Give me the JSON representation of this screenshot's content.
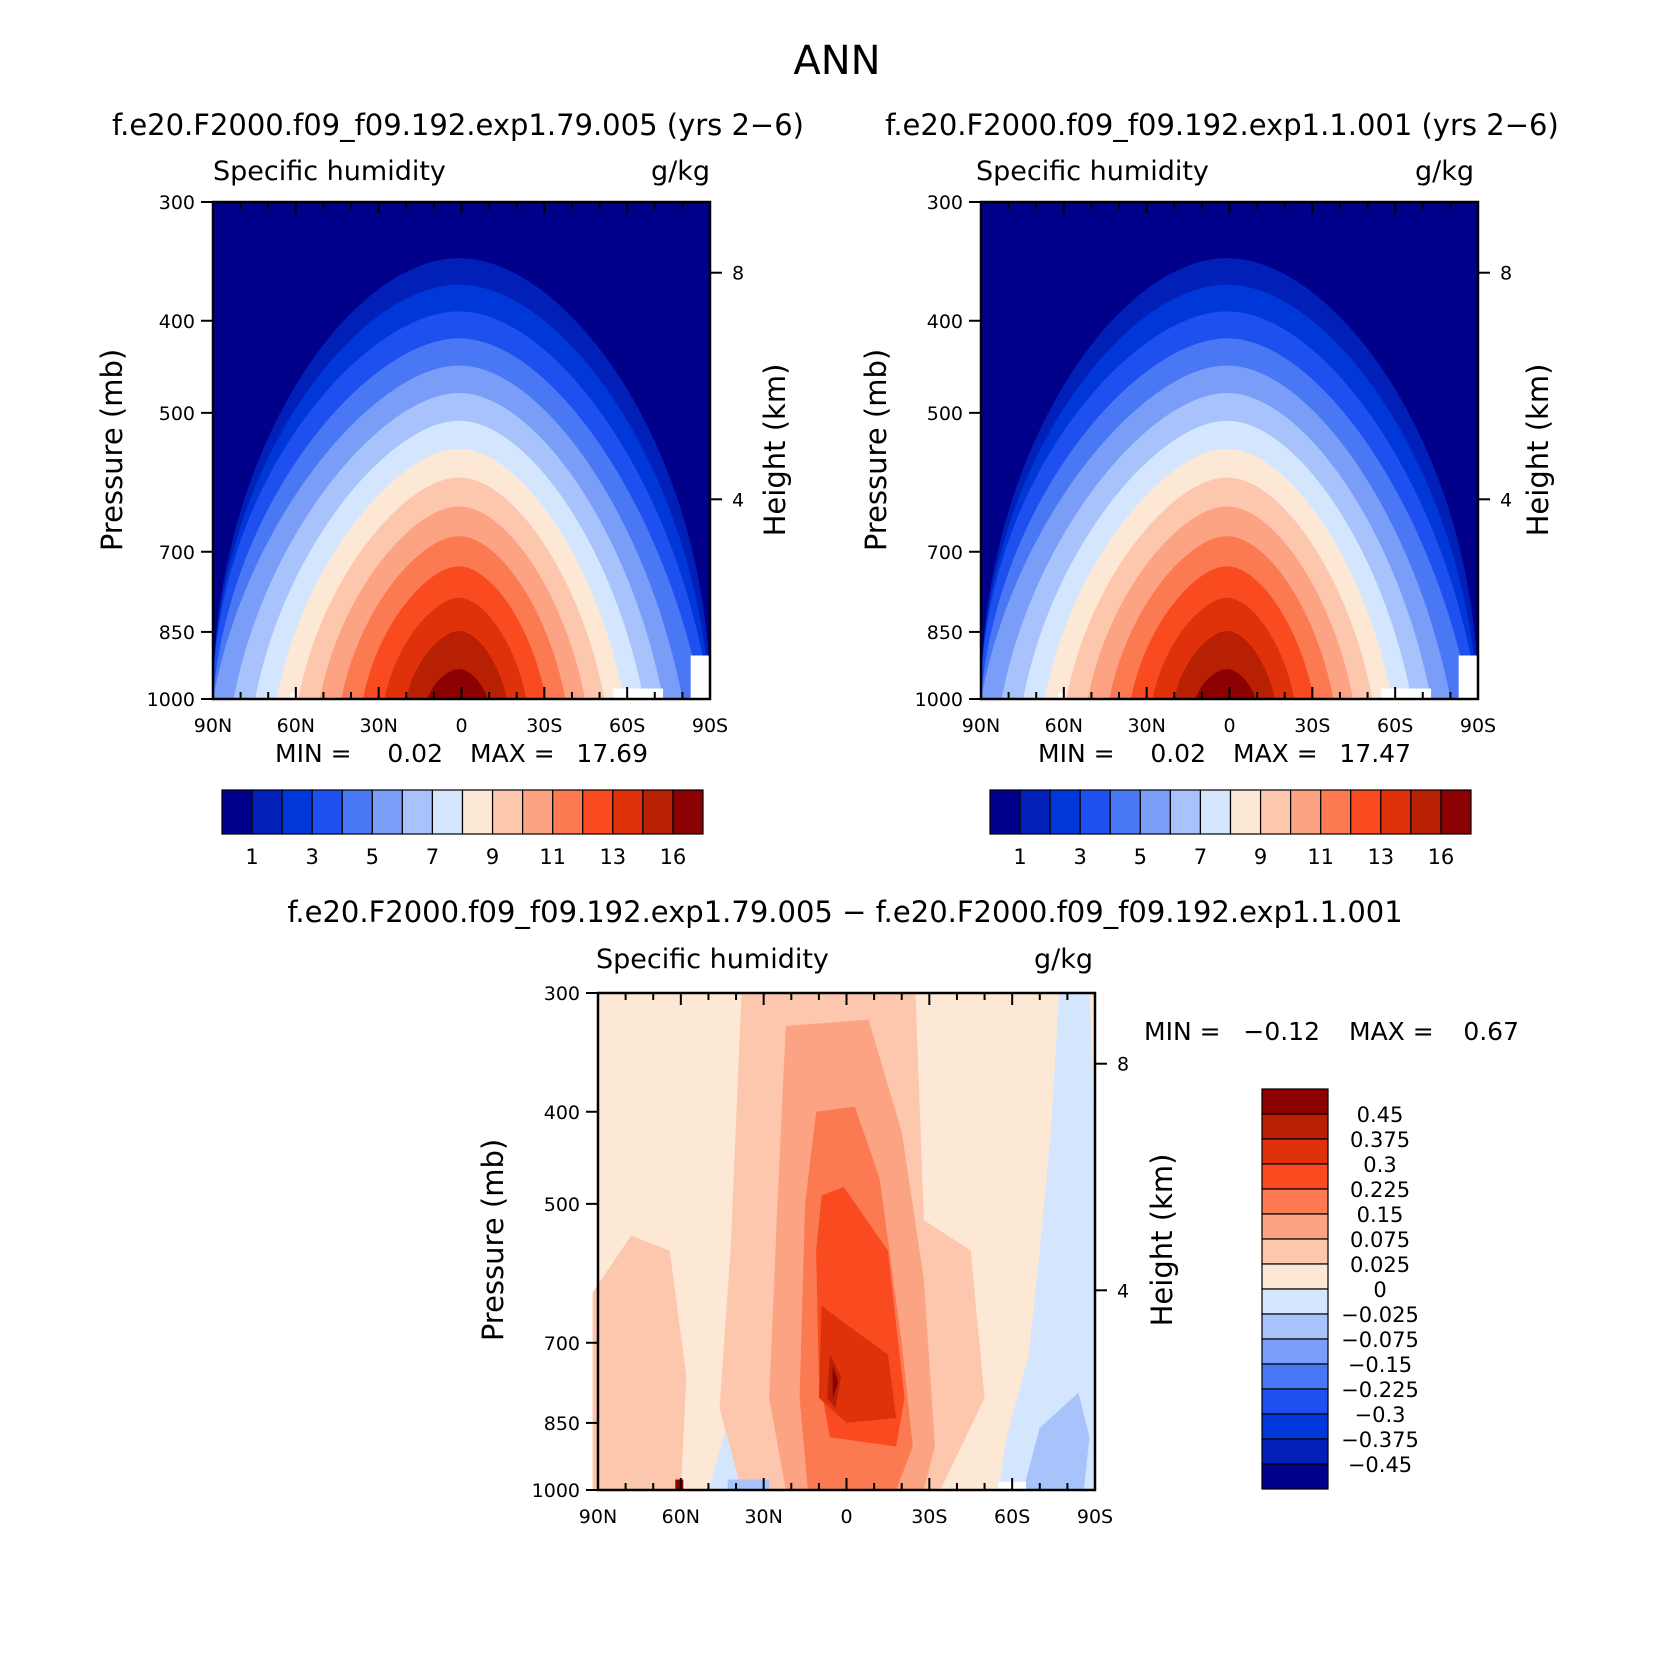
{
  "figure": {
    "title": "ANN"
  },
  "chart_data": [
    {
      "type": "heatmap",
      "panel": "top-left",
      "title": "f.e20.F2000.f09_f09.192.exp1.79.005 (yrs 2−6)",
      "variable": "Specific humidity",
      "units": "g/kg",
      "xlabel": "",
      "ylabel": "Pressure (mb)",
      "y2label": "Height (km)",
      "x_ticks": [
        "90N",
        "60N",
        "30N",
        "0",
        "30S",
        "60S",
        "90S"
      ],
      "x_tick_values": [
        90,
        60,
        30,
        0,
        -30,
        -60,
        -90
      ],
      "y_ticks": [
        300,
        400,
        500,
        700,
        850,
        1000
      ],
      "y2_ticks": [
        8,
        4
      ],
      "xlim": [
        90,
        -90
      ],
      "ylim": [
        1000,
        300
      ],
      "y_scale": "log",
      "min_label": "MIN =",
      "min": "0.02",
      "max_label": "MAX =",
      "max": "17.69",
      "levels": [
        1,
        2,
        3,
        4,
        5,
        6,
        7,
        8,
        9,
        10,
        11,
        12,
        13,
        14,
        16
      ],
      "colorbar_labels": [
        "1",
        "3",
        "5",
        "7",
        "9",
        "11",
        "13",
        "16"
      ],
      "colorbar_orientation": "horizontal-below",
      "colors": [
        "#00008b",
        "#0020b8",
        "#0037d8",
        "#1e50f0",
        "#4a78f5",
        "#7a9ef8",
        "#a8c2fb",
        "#d4e6fd",
        "#fde8d6",
        "#fcc7ac",
        "#fca384",
        "#fc7a52",
        "#f94a20",
        "#e0320a",
        "#b82004",
        "#8b0000"
      ]
    },
    {
      "type": "heatmap",
      "panel": "top-right",
      "title": "f.e20.F2000.f09_f09.192.exp1.1.001 (yrs 2−6)",
      "variable": "Specific humidity",
      "units": "g/kg",
      "xlabel": "",
      "ylabel": "Pressure (mb)",
      "y2label": "Height (km)",
      "x_ticks": [
        "90N",
        "60N",
        "30N",
        "0",
        "30S",
        "60S",
        "90S"
      ],
      "x_tick_values": [
        90,
        60,
        30,
        0,
        -30,
        -60,
        -90
      ],
      "y_ticks": [
        300,
        400,
        500,
        700,
        850,
        1000
      ],
      "y2_ticks": [
        8,
        4
      ],
      "xlim": [
        90,
        -90
      ],
      "ylim": [
        1000,
        300
      ],
      "y_scale": "log",
      "min_label": "MIN =",
      "min": "0.02",
      "max_label": "MAX =",
      "max": "17.47",
      "levels": [
        1,
        2,
        3,
        4,
        5,
        6,
        7,
        8,
        9,
        10,
        11,
        12,
        13,
        14,
        16
      ],
      "colorbar_labels": [
        "1",
        "3",
        "5",
        "7",
        "9",
        "11",
        "13",
        "16"
      ],
      "colorbar_orientation": "horizontal-below",
      "colors": [
        "#00008b",
        "#0020b8",
        "#0037d8",
        "#1e50f0",
        "#4a78f5",
        "#7a9ef8",
        "#a8c2fb",
        "#d4e6fd",
        "#fde8d6",
        "#fcc7ac",
        "#fca384",
        "#fc7a52",
        "#f94a20",
        "#e0320a",
        "#b82004",
        "#8b0000"
      ]
    },
    {
      "type": "heatmap",
      "panel": "bottom-difference",
      "title": "f.e20.F2000.f09_f09.192.exp1.79.005 − f.e20.F2000.f09_f09.192.exp1.1.001",
      "variable": "Specific humidity",
      "units": "g/kg",
      "xlabel": "",
      "ylabel": "Pressure (mb)",
      "y2label": "Height (km)",
      "x_ticks": [
        "90N",
        "60N",
        "30N",
        "0",
        "30S",
        "60S",
        "90S"
      ],
      "x_tick_values": [
        90,
        60,
        30,
        0,
        -30,
        -60,
        -90
      ],
      "y_ticks": [
        300,
        400,
        500,
        700,
        850,
        1000
      ],
      "y2_ticks": [
        8,
        4
      ],
      "xlim": [
        90,
        -90
      ],
      "ylim": [
        1000,
        300
      ],
      "y_scale": "log",
      "min_label": "MIN =",
      "min": "−0.12",
      "max_label": "MAX =",
      "max": "0.67",
      "colorbar_labels": [
        "0.45",
        "0.375",
        "0.3",
        "0.225",
        "0.15",
        "0.075",
        "0.025",
        "0",
        "−0.025",
        "−0.075",
        "−0.15",
        "−0.225",
        "−0.3",
        "−0.375",
        "−0.45"
      ],
      "colorbar_orientation": "vertical-right",
      "colors_top_to_bottom": [
        "#8b0000",
        "#b82004",
        "#e0320a",
        "#f94a20",
        "#fc7a52",
        "#fca384",
        "#fcc7ac",
        "#fde8d6",
        "#d4e6fd",
        "#a8c2fb",
        "#7a9ef8",
        "#4a78f5",
        "#1e50f0",
        "#0037d8",
        "#0020b8",
        "#00008b"
      ]
    }
  ]
}
